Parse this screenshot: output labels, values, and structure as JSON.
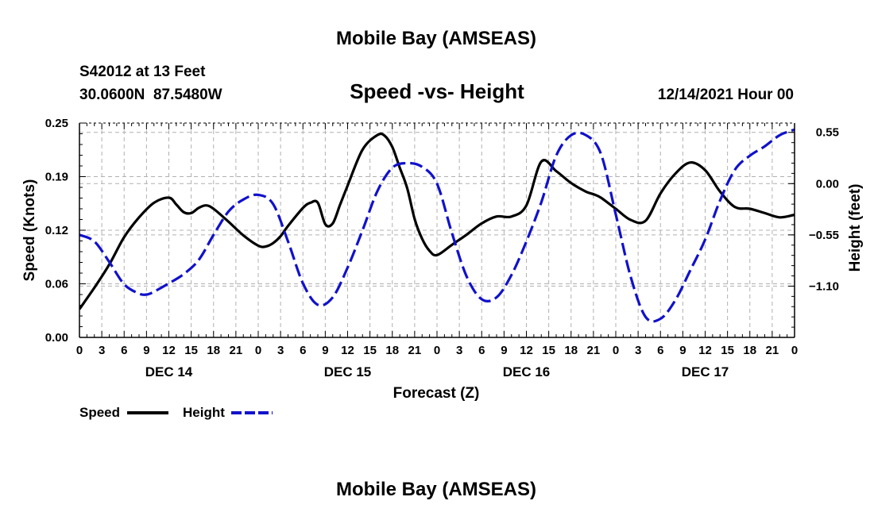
{
  "chart_data": {
    "type": "line",
    "title": "Mobile Bay (AMSEAS)",
    "footer_title": "Mobile Bay (AMSEAS)",
    "station": {
      "id_line": "S42012 at 13 Feet",
      "coords_line": "30.0600N  87.5480W"
    },
    "subtitle": "Speed -vs- Height",
    "forecast_time": "12/14/2021 Hour 00",
    "xlabel": "Forecast (Z)",
    "ylabel_left": "Speed (Knots)",
    "ylabel_right": "Height (feet)",
    "x_unit": "hours from 12/14/2021 00Z",
    "xlim": [
      0,
      96
    ],
    "ylim_left": [
      0,
      0.25
    ],
    "ylim_right": [
      -1.65,
      0.65
    ],
    "x_tick_labels": [
      "0",
      "3",
      "6",
      "9",
      "12",
      "15",
      "18",
      "21",
      "0",
      "3",
      "6",
      "9",
      "12",
      "15",
      "18",
      "21",
      "0",
      "3",
      "6",
      "9",
      "12",
      "15",
      "18",
      "21",
      "0",
      "3",
      "6",
      "9",
      "12",
      "15",
      "18",
      "21",
      "0"
    ],
    "left_ticks": [
      {
        "value": 0.0,
        "label": "0.00"
      },
      {
        "value": 0.0625,
        "label": "0.06"
      },
      {
        "value": 0.125,
        "label": "0.12"
      },
      {
        "value": 0.1875,
        "label": "0.19"
      },
      {
        "value": 0.25,
        "label": "0.25"
      }
    ],
    "right_ticks": [
      {
        "value": 0.55,
        "label": "0.55"
      },
      {
        "value": 0.0,
        "label": "0.00"
      },
      {
        "value": -0.55,
        "label": "−0.55"
      },
      {
        "value": -1.1,
        "label": "−1.10"
      }
    ],
    "day_labels": [
      {
        "label": "DEC 14",
        "hour": 12
      },
      {
        "label": "DEC 15",
        "hour": 36
      },
      {
        "label": "DEC 16",
        "hour": 60
      },
      {
        "label": "DEC 17",
        "hour": 84
      }
    ],
    "grid": true,
    "legend": [
      {
        "name": "Speed",
        "color": "#000000",
        "style": "solid"
      },
      {
        "name": "Height",
        "color": "#1111cc",
        "style": "dashed"
      }
    ],
    "legend_position": "bottom-left",
    "series": [
      {
        "name": "Speed",
        "axis": "left",
        "color": "#000000",
        "style": "solid",
        "x": [
          0,
          2,
          4,
          6,
          8,
          10,
          12,
          13,
          14,
          15,
          16,
          17,
          18,
          20,
          22,
          24,
          25,
          26,
          27,
          28,
          30,
          31,
          32,
          33,
          34,
          35,
          36,
          38,
          40,
          41,
          42,
          43,
          44,
          45,
          46,
          47,
          48,
          50,
          52,
          54,
          56,
          58,
          60,
          62,
          64,
          66,
          68,
          69,
          70,
          72,
          74,
          76,
          78,
          80,
          82,
          84,
          86,
          88,
          90,
          92,
          94,
          96
        ],
        "y": [
          0.033,
          0.058,
          0.085,
          0.117,
          0.14,
          0.157,
          0.163,
          0.155,
          0.146,
          0.145,
          0.151,
          0.154,
          0.15,
          0.135,
          0.119,
          0.107,
          0.106,
          0.11,
          0.118,
          0.13,
          0.151,
          0.157,
          0.157,
          0.132,
          0.133,
          0.155,
          0.177,
          0.219,
          0.236,
          0.235,
          0.222,
          0.198,
          0.174,
          0.138,
          0.115,
          0.101,
          0.096,
          0.108,
          0.12,
          0.133,
          0.141,
          0.141,
          0.154,
          0.205,
          0.194,
          0.18,
          0.17,
          0.167,
          0.163,
          0.15,
          0.137,
          0.136,
          0.168,
          0.191,
          0.204,
          0.195,
          0.17,
          0.152,
          0.15,
          0.145,
          0.14,
          0.143
        ]
      },
      {
        "name": "Height",
        "axis": "right",
        "color": "#1111cc",
        "style": "dashed",
        "x": [
          0,
          2,
          4,
          6,
          8,
          9,
          10,
          12,
          14,
          16,
          18,
          20,
          22,
          24,
          26,
          28,
          30,
          32,
          34,
          36,
          38,
          40,
          42,
          44,
          46,
          48,
          50,
          52,
          54,
          56,
          58,
          60,
          62,
          64,
          66,
          68,
          70,
          72,
          74,
          76,
          78,
          80,
          82,
          84,
          86,
          88,
          90,
          92,
          94,
          96
        ],
        "y": [
          -0.55,
          -0.62,
          -0.84,
          -1.08,
          -1.18,
          -1.19,
          -1.16,
          -1.07,
          -0.97,
          -0.82,
          -0.55,
          -0.3,
          -0.17,
          -0.12,
          -0.22,
          -0.62,
          -1.07,
          -1.3,
          -1.22,
          -0.9,
          -0.5,
          -0.08,
          0.17,
          0.22,
          0.18,
          0.0,
          -0.53,
          -1.0,
          -1.24,
          -1.22,
          -0.98,
          -0.62,
          -0.2,
          0.3,
          0.52,
          0.52,
          0.32,
          -0.33,
          -1.0,
          -1.43,
          -1.45,
          -1.25,
          -0.93,
          -0.6,
          -0.18,
          0.15,
          0.3,
          0.4,
          0.52,
          0.58
        ]
      }
    ]
  }
}
